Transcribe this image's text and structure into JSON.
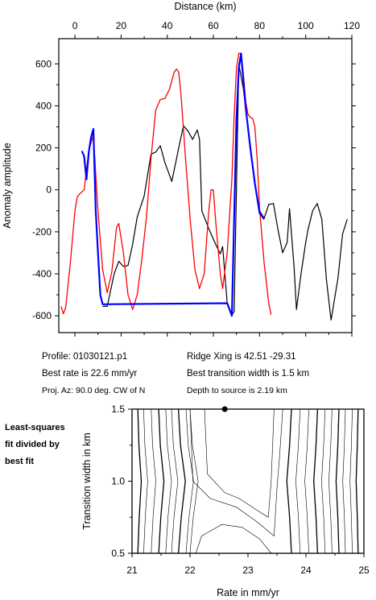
{
  "chart_data": [
    {
      "type": "line",
      "xlabel": "Distance (km)",
      "ylabel": "Anomaly amplitude",
      "xlim": [
        -7,
        120
      ],
      "ylim": [
        -680,
        720
      ],
      "xticks": [
        0,
        20,
        40,
        60,
        80,
        100,
        120
      ],
      "yticks": [
        600,
        400,
        200,
        0,
        -200,
        -400,
        -600
      ],
      "x_axis_position": "top",
      "grid": false,
      "series": [
        {
          "color": "#000000",
          "points": [
            [
              12,
              -555
            ],
            [
              14,
              -555
            ],
            [
              17,
              -400
            ],
            [
              19,
              -340
            ],
            [
              21,
              -365
            ],
            [
              23,
              -360
            ],
            [
              25,
              -260
            ],
            [
              27,
              -130
            ],
            [
              30,
              -30
            ],
            [
              33,
              170
            ],
            [
              35,
              180
            ],
            [
              37,
              210
            ],
            [
              39,
              130
            ],
            [
              42,
              40
            ],
            [
              45,
              200
            ],
            [
              47,
              305
            ],
            [
              49,
              280
            ],
            [
              51,
              240
            ],
            [
              53,
              285
            ],
            [
              54,
              240
            ],
            [
              55,
              -100
            ],
            [
              58,
              -185
            ],
            [
              61,
              -260
            ],
            [
              63,
              -305
            ],
            [
              64,
              -270
            ],
            [
              66,
              -540
            ],
            [
              68,
              -595
            ],
            [
              69,
              -580
            ],
            [
              71,
              600
            ],
            [
              73,
              480
            ],
            [
              76,
              200
            ],
            [
              78,
              30
            ],
            [
              80,
              -100
            ],
            [
              82,
              -135
            ],
            [
              84,
              -70
            ],
            [
              86,
              -65
            ],
            [
              88,
              -190
            ],
            [
              90,
              -300
            ],
            [
              92,
              -250
            ],
            [
              93,
              -90
            ],
            [
              95,
              -370
            ],
            [
              96,
              -570
            ],
            [
              98,
              -400
            ],
            [
              100,
              -250
            ],
            [
              101,
              -190
            ],
            [
              103,
              -100
            ],
            [
              105,
              -65
            ],
            [
              107,
              -140
            ],
            [
              109,
              -430
            ],
            [
              111,
              -620
            ],
            [
              114,
              -420
            ],
            [
              116,
              -210
            ],
            [
              118,
              -140
            ]
          ]
        },
        {
          "color": "#ff0000",
          "points": [
            [
              -6,
              -555
            ],
            [
              -5,
              -590
            ],
            [
              -4,
              -560
            ],
            [
              -2,
              -350
            ],
            [
              0,
              -100
            ],
            [
              1,
              -35
            ],
            [
              2,
              -20
            ],
            [
              4,
              0
            ],
            [
              6,
              190
            ],
            [
              8,
              260
            ],
            [
              10,
              -100
            ],
            [
              12,
              -380
            ],
            [
              14,
              -490
            ],
            [
              16,
              -390
            ],
            [
              18,
              -180
            ],
            [
              19,
              -160
            ],
            [
              21,
              -300
            ],
            [
              23,
              -500
            ],
            [
              25,
              -570
            ],
            [
              27,
              -500
            ],
            [
              29,
              -330
            ],
            [
              31,
              -130
            ],
            [
              33,
              150
            ],
            [
              35,
              380
            ],
            [
              37,
              430
            ],
            [
              39,
              435
            ],
            [
              41,
              480
            ],
            [
              43,
              560
            ],
            [
              44,
              575
            ],
            [
              45,
              560
            ],
            [
              46,
              450
            ],
            [
              48,
              140
            ],
            [
              50,
              -150
            ],
            [
              52,
              -380
            ],
            [
              54,
              -470
            ],
            [
              56,
              -400
            ],
            [
              58,
              -100
            ],
            [
              59,
              0
            ],
            [
              60,
              0
            ],
            [
              61,
              -150
            ],
            [
              63,
              -400
            ],
            [
              64,
              -470
            ],
            [
              66,
              -300
            ],
            [
              68,
              50
            ],
            [
              69,
              350
            ],
            [
              70,
              580
            ],
            [
              71,
              650
            ],
            [
              72,
              650
            ],
            [
              73,
              550
            ],
            [
              74,
              420
            ],
            [
              75,
              360
            ],
            [
              76,
              345
            ],
            [
              77,
              340
            ],
            [
              78,
              300
            ],
            [
              79,
              140
            ],
            [
              80,
              -90
            ],
            [
              82,
              -350
            ],
            [
              84,
              -540
            ],
            [
              85,
              -595
            ]
          ]
        },
        {
          "color": "#0000ff",
          "points": [
            [
              3,
              185
            ],
            [
              4,
              160
            ],
            [
              5,
              50
            ],
            [
              6,
              180
            ],
            [
              7,
              250
            ],
            [
              8,
              290
            ],
            [
              9,
              -100
            ],
            [
              10,
              -300
            ],
            [
              11,
              -500
            ],
            [
              12,
              -545
            ],
            [
              66,
              -540
            ],
            [
              68,
              -600
            ],
            [
              70,
              340
            ],
            [
              71,
              580
            ],
            [
              72,
              650
            ],
            [
              73,
              520
            ],
            [
              74,
              390
            ],
            [
              76,
              200
            ],
            [
              78,
              30
            ],
            [
              80,
              -110
            ],
            [
              82,
              -140
            ]
          ]
        }
      ]
    },
    {
      "type": "contour",
      "xlabel": "Rate in mm/yr",
      "ylabel": "Transition width in km",
      "xlim": [
        21,
        25
      ],
      "ylim": [
        0.5,
        1.5
      ],
      "xticks": [
        21,
        22,
        23,
        24,
        25
      ],
      "yticks": [
        0.5,
        1.0,
        1.5
      ],
      "best_fit": {
        "x": 22.6,
        "y": 1.5
      }
    }
  ],
  "info": {
    "profile": "Profile: 01030121.p1",
    "best_rate": "Best rate is 22.6 mm/yr",
    "proj_az": "Proj. Az: 90.0 deg. CW of N",
    "ridge_xing": "Ridge Xing is 42.51 -29.31",
    "best_transition": "Best transition width is 1.5 km",
    "depth": "Depth to source is   2.19 km"
  },
  "side_note": [
    "Least-squares",
    "fit divided by",
    "best fit"
  ]
}
